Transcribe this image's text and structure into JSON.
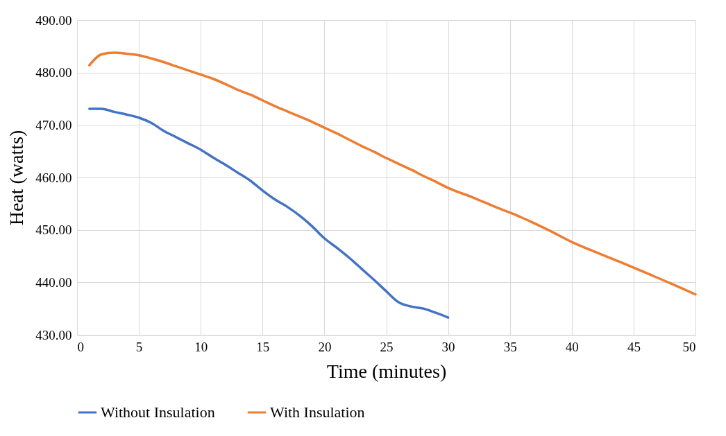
{
  "chart_data": {
    "type": "line",
    "xlabel": "Time (minutes)",
    "ylabel": "Heat (watts)",
    "xlim": [
      0,
      50
    ],
    "xticks": [
      0,
      5,
      10,
      15,
      20,
      25,
      30,
      35,
      40,
      45,
      50
    ],
    "ylim": [
      430,
      490
    ],
    "yticks": [
      {
        "value": 430,
        "label": "430.00"
      },
      {
        "value": 440,
        "label": "440.00"
      },
      {
        "value": 450,
        "label": "450.00"
      },
      {
        "value": 460,
        "label": "460.00"
      },
      {
        "value": 470,
        "label": "470.00"
      },
      {
        "value": 480,
        "label": "480.00"
      },
      {
        "value": 490,
        "label": "490.00"
      }
    ],
    "grid": true,
    "legend": "bottom",
    "marker": "none",
    "line_style": "solid",
    "series": [
      {
        "name": "Without Insulation",
        "color": "#4472c4",
        "x": [
          1,
          2,
          3,
          4,
          5,
          6,
          7,
          8,
          9,
          10,
          11,
          12,
          13,
          14,
          15,
          16,
          17,
          18,
          19,
          20,
          21,
          22,
          23,
          24,
          25,
          26,
          27,
          28,
          29,
          30
        ],
        "values": [
          473.1,
          473.1,
          472.5,
          472.0,
          471.4,
          470.4,
          468.9,
          467.7,
          466.5,
          465.3,
          463.8,
          462.4,
          460.9,
          459.4,
          457.5,
          455.8,
          454.4,
          452.7,
          450.7,
          448.4,
          446.6,
          444.7,
          442.6,
          440.5,
          438.3,
          436.2,
          435.4,
          435.0,
          434.2,
          433.3
        ]
      },
      {
        "name": "With Insulation",
        "color": "#ed7d31",
        "x": [
          1,
          2,
          3,
          4,
          5,
          6,
          7,
          8,
          9,
          10,
          11,
          12,
          13,
          14,
          15,
          16,
          17,
          18,
          19,
          20,
          21,
          22,
          23,
          24,
          25,
          26,
          27,
          28,
          29,
          30,
          32,
          34,
          35,
          36,
          38,
          40,
          42,
          44,
          45,
          46,
          48,
          50
        ],
        "values": [
          481.4,
          483.5,
          483.8,
          483.6,
          483.3,
          482.7,
          482.0,
          481.2,
          480.4,
          479.6,
          478.8,
          477.8,
          476.7,
          475.8,
          474.7,
          473.6,
          472.6,
          471.6,
          470.6,
          469.5,
          468.4,
          467.2,
          466.0,
          464.9,
          463.7,
          462.6,
          461.5,
          460.3,
          459.2,
          458.0,
          456.2,
          454.2,
          453.3,
          452.3,
          450.1,
          447.7,
          445.7,
          443.8,
          442.8,
          441.8,
          439.8,
          437.7
        ]
      }
    ]
  }
}
